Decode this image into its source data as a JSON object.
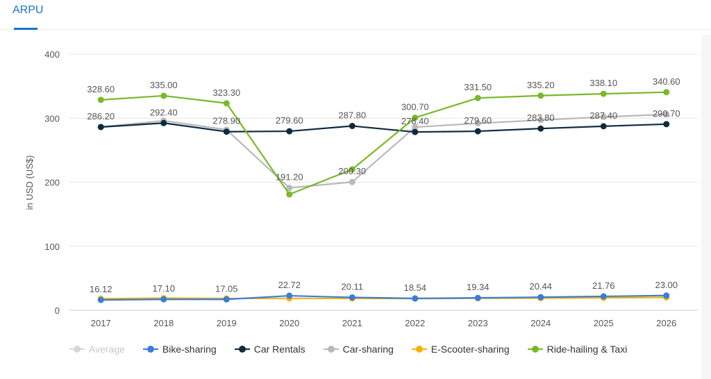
{
  "tab": {
    "label": "ARPU"
  },
  "chart_data": {
    "type": "line",
    "ylabel": "in USD (US$)",
    "ylim": [
      0,
      400
    ],
    "yticks": [
      0,
      100,
      200,
      300,
      400
    ],
    "grid": true,
    "legend_position": "bottom",
    "x": [
      "2017",
      "2018",
      "2019",
      "2020",
      "2021",
      "2022",
      "2023",
      "2024",
      "2025",
      "2026"
    ],
    "series": [
      {
        "name": "Average",
        "color": "#cccccc",
        "visible": false,
        "values": [
          16.12,
          17.1,
          17.05,
          22.72,
          20.11,
          18.54,
          19.34,
          20.44,
          21.76,
          23.0
        ]
      },
      {
        "name": "Bike-sharing",
        "color": "#3a7dd8",
        "visible": true,
        "values": [
          16.12,
          17.1,
          17.05,
          22.72,
          20.11,
          18.54,
          19.34,
          20.44,
          21.76,
          23.0
        ]
      },
      {
        "name": "Car Rentals",
        "color": "#0e2a3f",
        "visible": true,
        "values": [
          286.2,
          292.4,
          278.9,
          279.6,
          287.8,
          278.4,
          279.6,
          283.8,
          287.4,
          290.7
        ]
      },
      {
        "name": "Car-sharing",
        "color": "#b9b9b9",
        "visible": true,
        "values": [
          286.2,
          296.0,
          282.0,
          191.2,
          200.3,
          286.0,
          292.0,
          297.0,
          302.0,
          306.0
        ]
      },
      {
        "name": "E-Scooter-sharing",
        "color": "#f5b301",
        "visible": true,
        "values": [
          18.0,
          19.0,
          18.5,
          18.5,
          18.5,
          18.2,
          18.8,
          19.0,
          19.5,
          20.0
        ]
      },
      {
        "name": "Ride-hailing & Taxi",
        "color": "#78b928",
        "visible": true,
        "values": [
          328.6,
          335.0,
          323.3,
          181.0,
          220.0,
          300.7,
          331.5,
          335.2,
          338.1,
          340.6
        ]
      }
    ],
    "data_labels": {
      "Ride-hailing & Taxi": {
        "indices": [
          0,
          1,
          2,
          5,
          6,
          7,
          8,
          9
        ],
        "texts": [
          "328.60",
          "335.00",
          "323.30",
          "300.70",
          "331.50",
          "335.20",
          "338.10",
          "340.60"
        ]
      },
      "Car Rentals": {
        "indices": [
          0,
          1,
          2,
          3,
          4,
          5,
          6,
          7,
          8,
          9
        ],
        "texts": [
          "286.20",
          "292.40",
          "278.90",
          "279.60",
          "287.80",
          "278.40",
          "279.60",
          "283.80",
          "287.40",
          "290.70"
        ]
      },
      "Car-sharing": {
        "indices": [
          3,
          4
        ],
        "texts": [
          "191.20",
          "200.30"
        ]
      },
      "Bike-sharing": {
        "indices": [
          0,
          1,
          2,
          3,
          4,
          5,
          6,
          7,
          8,
          9
        ],
        "texts": [
          "16.12",
          "17.10",
          "17.05",
          "22.72",
          "20.11",
          "18.54",
          "19.34",
          "20.44",
          "21.76",
          "23.00"
        ]
      }
    }
  }
}
